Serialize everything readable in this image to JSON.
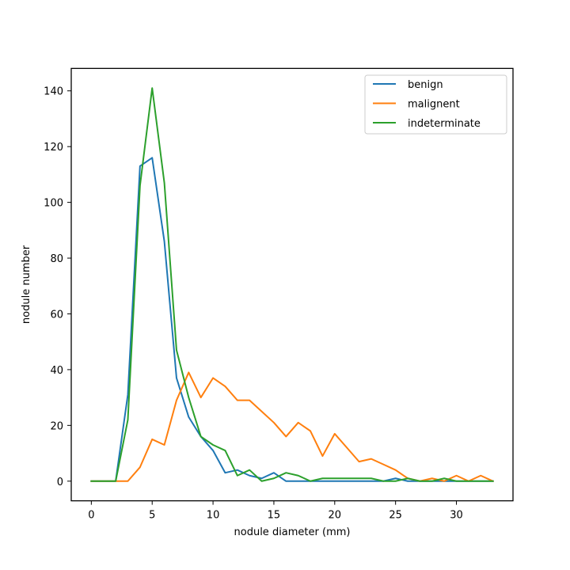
{
  "chart_data": {
    "type": "line",
    "xlabel": "nodule diameter (mm)",
    "ylabel": "nodule number",
    "xlim": [
      -1.65,
      34.65
    ],
    "ylim": [
      -7.05,
      148.05
    ],
    "xticks": [
      0,
      5,
      10,
      15,
      20,
      25,
      30
    ],
    "yticks": [
      0,
      20,
      40,
      60,
      80,
      100,
      120,
      140
    ],
    "grid": false,
    "legend_position": "top-right",
    "x": [
      0,
      1,
      2,
      3,
      4,
      5,
      6,
      7,
      8,
      9,
      10,
      11,
      12,
      13,
      14,
      15,
      16,
      17,
      18,
      19,
      20,
      21,
      22,
      23,
      24,
      25,
      26,
      27,
      28,
      29,
      30,
      31,
      32,
      33
    ],
    "series": [
      {
        "name": "benign",
        "color": "#1f77b4",
        "values": [
          0,
          0,
          0,
          31,
          113,
          116,
          86,
          37,
          23,
          16,
          11,
          3,
          4,
          2,
          1,
          3,
          0,
          0,
          0,
          0,
          0,
          0,
          0,
          0,
          0,
          1,
          0,
          0,
          0,
          0,
          0,
          0,
          0,
          0
        ]
      },
      {
        "name": "malignent",
        "color": "#ff7f0e",
        "values": [
          0,
          0,
          0,
          0,
          5,
          15,
          13,
          29,
          39,
          30,
          37,
          34,
          29,
          29,
          25,
          21,
          16,
          21,
          18,
          9,
          17,
          12,
          7,
          8,
          6,
          4,
          1,
          0,
          1,
          0,
          2,
          0,
          2,
          0
        ]
      },
      {
        "name": "indeterminate",
        "color": "#2ca02c",
        "values": [
          0,
          0,
          0,
          22,
          106,
          141,
          107,
          47,
          30,
          16,
          13,
          11,
          2,
          4,
          0,
          1,
          3,
          2,
          0,
          1,
          1,
          1,
          1,
          1,
          0,
          0,
          1,
          0,
          0,
          1,
          0,
          0,
          0,
          0
        ]
      }
    ]
  }
}
